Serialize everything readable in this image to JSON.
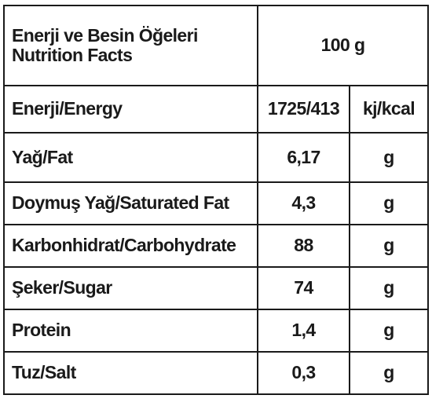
{
  "header": {
    "title_line1": "Enerji ve Besin Öğeleri",
    "title_line2": "Nutrition Facts",
    "serving": "100 g"
  },
  "rows": [
    {
      "label": "Enerji/Energy",
      "value": "1725/413",
      "unit": "kj/kcal"
    },
    {
      "label": "Yağ/Fat",
      "value": "6,17",
      "unit": "g"
    },
    {
      "label": "Doymuş Yağ/Saturated Fat",
      "value": "4,3",
      "unit": "g"
    },
    {
      "label": "Karbonhidrat/Carbohydrate",
      "value": "88",
      "unit": "g"
    },
    {
      "label": "Şeker/Sugar",
      "value": "74",
      "unit": "g"
    },
    {
      "label": "Protein",
      "value": "1,4",
      "unit": "g"
    },
    {
      "label": "Tuz/Salt",
      "value": "0,3",
      "unit": "g"
    }
  ]
}
